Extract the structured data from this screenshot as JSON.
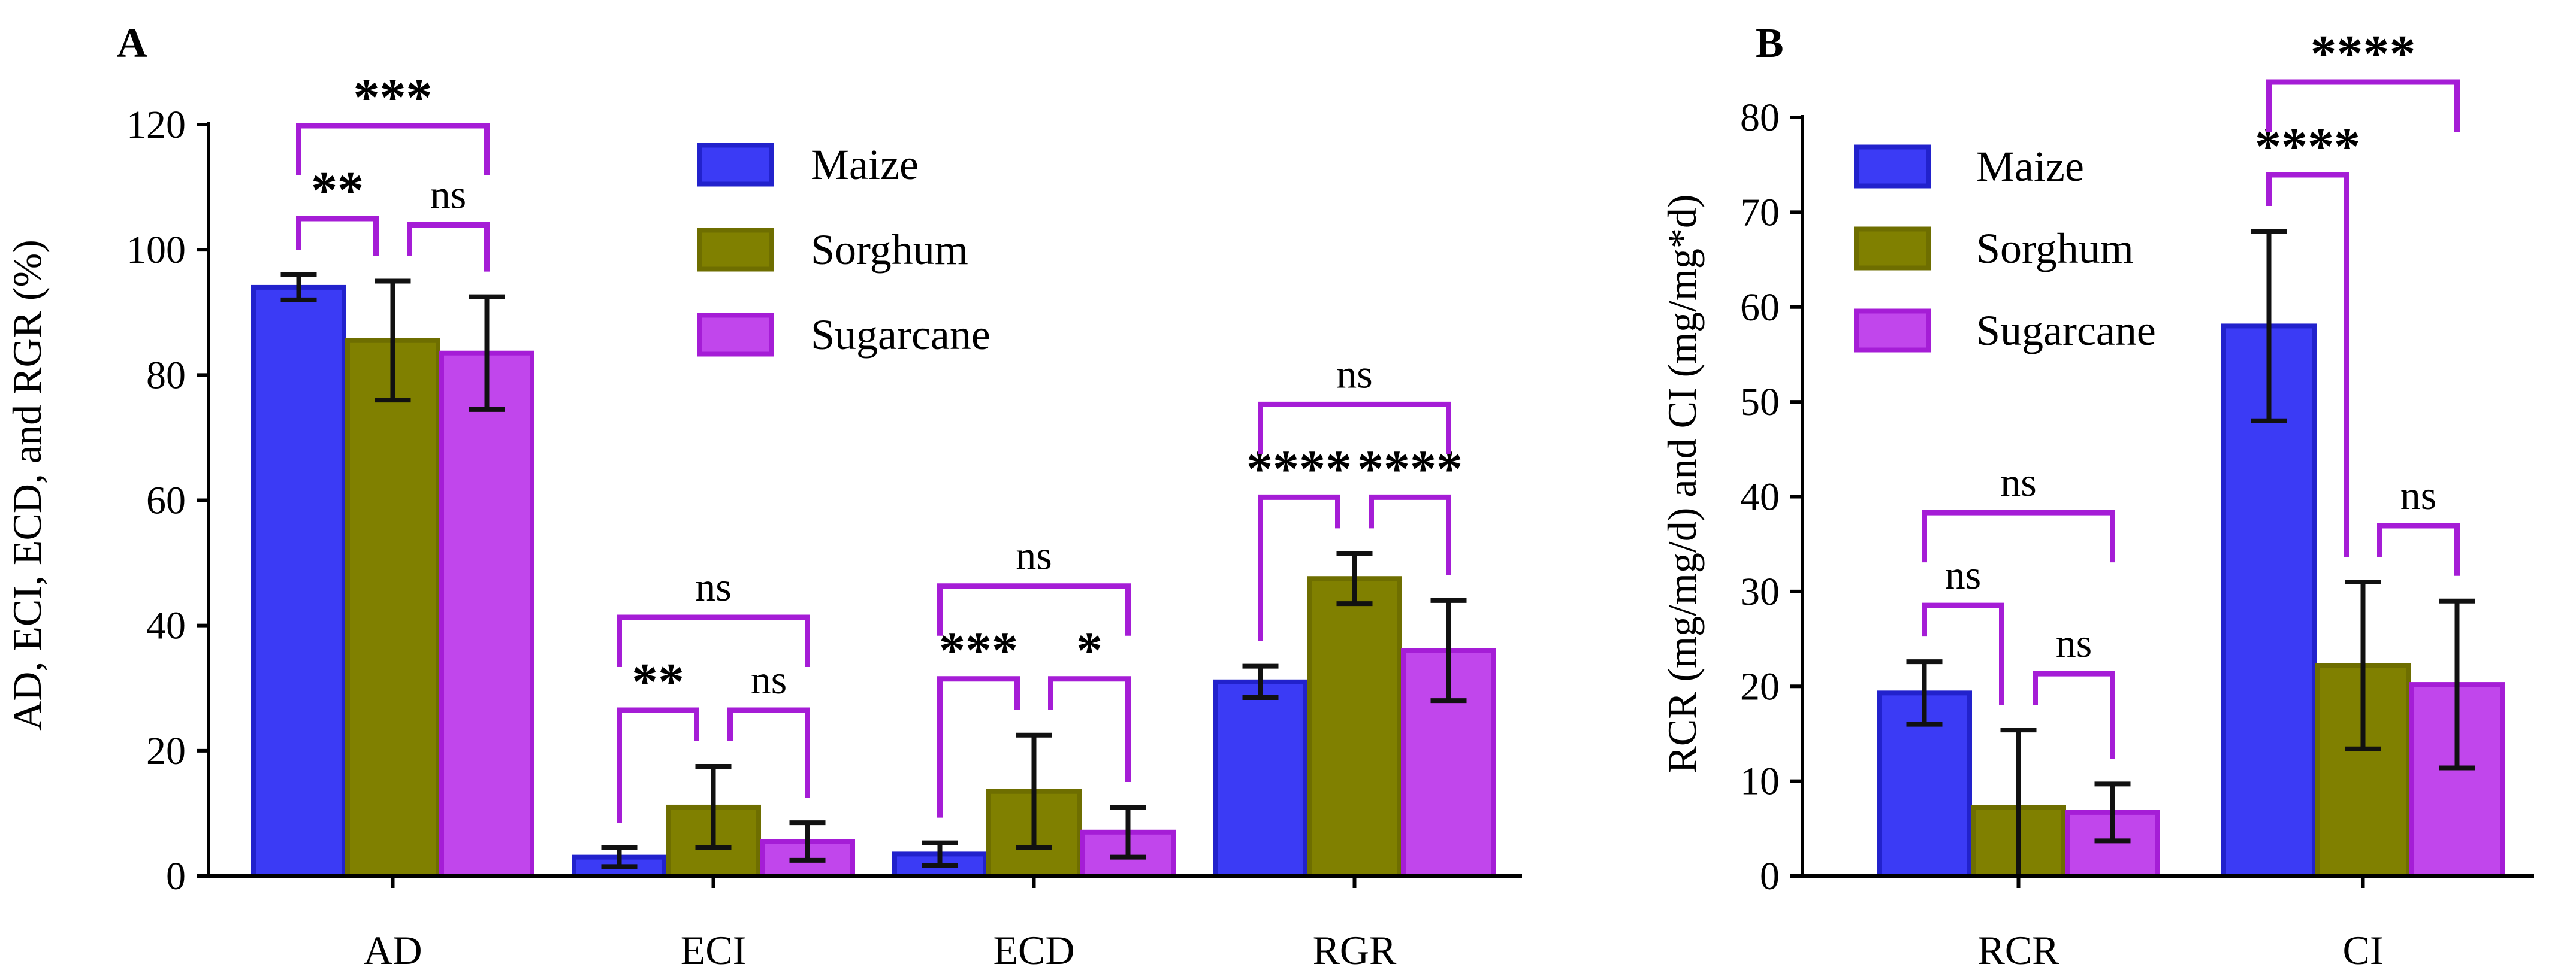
{
  "chart_data": [
    {
      "type": "bar",
      "panel": "A",
      "ylabel": "AD, ECI, ECD, and RGR (%)",
      "ylim": [
        0,
        120
      ],
      "yticks": [
        0,
        20,
        40,
        60,
        80,
        100,
        120
      ],
      "categories": [
        "AD",
        "ECI",
        "ECD",
        "RGR"
      ],
      "series": [
        {
          "name": "Maize",
          "color": "#3b3bf5",
          "border": "#2222cc",
          "values": [
            94,
            3,
            3.5,
            31
          ],
          "errors": [
            2,
            1.5,
            1.8,
            2.5
          ]
        },
        {
          "name": "Sorghum",
          "color": "#808000",
          "border": "#6e6e00",
          "values": [
            85.5,
            11,
            13.5,
            47.5
          ],
          "errors": [
            9.5,
            6.5,
            9,
            4
          ]
        },
        {
          "name": "Sugarcane",
          "color": "#c146ec",
          "border": "#a51dd6",
          "values": [
            83.5,
            5.5,
            7,
            36
          ],
          "errors": [
            9,
            3,
            4,
            8
          ]
        }
      ],
      "legend": {
        "position": "top-center",
        "entries": [
          "Maize",
          "Sorghum",
          "Sugarcane"
        ]
      },
      "significance": [
        {
          "category": "AD",
          "from": 0,
          "to": 1,
          "label": "**"
        },
        {
          "category": "AD",
          "from": 1,
          "to": 2,
          "label": "ns"
        },
        {
          "category": "AD",
          "from": 0,
          "to": 2,
          "label": "***"
        },
        {
          "category": "ECI",
          "from": 0,
          "to": 1,
          "label": "**"
        },
        {
          "category": "ECI",
          "from": 1,
          "to": 2,
          "label": "ns"
        },
        {
          "category": "ECI",
          "from": 0,
          "to": 2,
          "label": "ns"
        },
        {
          "category": "ECD",
          "from": 0,
          "to": 1,
          "label": "***"
        },
        {
          "category": "ECD",
          "from": 1,
          "to": 2,
          "label": "*"
        },
        {
          "category": "ECD",
          "from": 0,
          "to": 2,
          "label": "ns"
        },
        {
          "category": "RGR",
          "from": 0,
          "to": 1,
          "label": "****"
        },
        {
          "category": "RGR",
          "from": 1,
          "to": 2,
          "label": "****"
        },
        {
          "category": "RGR",
          "from": 0,
          "to": 2,
          "label": "ns"
        }
      ]
    },
    {
      "type": "bar",
      "panel": "B",
      "ylabel": "RCR (mg/mg/d) and CI (mg/mg*d)",
      "ylim": [
        0,
        80
      ],
      "yticks": [
        0,
        10,
        20,
        30,
        40,
        50,
        60,
        70,
        80
      ],
      "categories": [
        "RCR",
        "CI"
      ],
      "series": [
        {
          "name": "Maize",
          "color": "#3b3bf5",
          "border": "#2222cc",
          "values": [
            19.3,
            58
          ],
          "errors": [
            3.3,
            10
          ]
        },
        {
          "name": "Sorghum",
          "color": "#808000",
          "border": "#6e6e00",
          "values": [
            7.2,
            22.2
          ],
          "errors": [
            8.2,
            8.8
          ]
        },
        {
          "name": "Sugarcane",
          "color": "#c146ec",
          "border": "#a51dd6",
          "values": [
            6.7,
            20.2
          ],
          "errors": [
            3,
            8.8
          ]
        }
      ],
      "legend": {
        "position": "top-left",
        "entries": [
          "Maize",
          "Sorghum",
          "Sugarcane"
        ]
      },
      "significance": [
        {
          "category": "RCR",
          "from": 0,
          "to": 1,
          "label": "ns"
        },
        {
          "category": "RCR",
          "from": 1,
          "to": 2,
          "label": "ns"
        },
        {
          "category": "RCR",
          "from": 0,
          "to": 2,
          "label": "ns"
        },
        {
          "category": "CI",
          "from": 0,
          "to": 1,
          "label": "****"
        },
        {
          "category": "CI",
          "from": 1,
          "to": 2,
          "label": "ns"
        },
        {
          "category": "CI",
          "from": 0,
          "to": 2,
          "label": "****"
        }
      ]
    }
  ],
  "colors": {
    "bracket": "#a51dd6",
    "errorbar": "#111111",
    "axis": "#000000"
  }
}
